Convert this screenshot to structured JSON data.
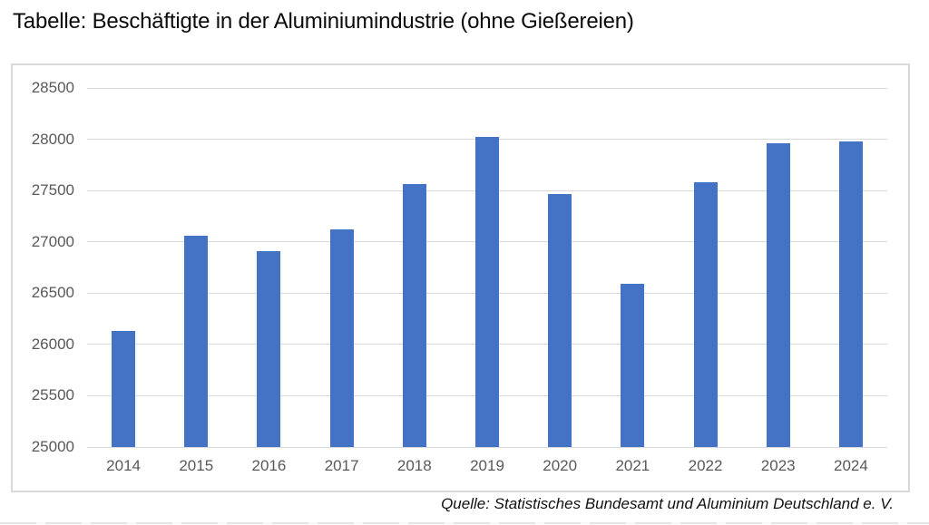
{
  "header": {
    "title": "Tabelle: Beschäftigte in der Aluminiumindustrie (ohne Gießereien)"
  },
  "footer": {
    "source": "Quelle: Statistisches Bundesamt und Aluminium Deutschland e. V."
  },
  "chart_data": {
    "type": "bar",
    "title": "Tabelle: Beschäftigte in der Aluminiumindustrie (ohne Gießereien)",
    "categories": [
      "2014",
      "2015",
      "2016",
      "2017",
      "2018",
      "2019",
      "2020",
      "2021",
      "2022",
      "2023",
      "2024"
    ],
    "values": [
      26130,
      27060,
      26910,
      27120,
      27560,
      28020,
      27470,
      26590,
      27580,
      27960,
      27980
    ],
    "xlabel": "",
    "ylabel": "",
    "ylim": [
      25000,
      28500
    ],
    "yticks": [
      25000,
      25500,
      26000,
      26500,
      27000,
      27500,
      28000,
      28500
    ],
    "grid": true,
    "legend": false,
    "bar_color": "#4472C4",
    "gridline_color": "#D9D9D9",
    "axis_text_color": "#595959",
    "frame_border_color": "#D9D9D9"
  }
}
